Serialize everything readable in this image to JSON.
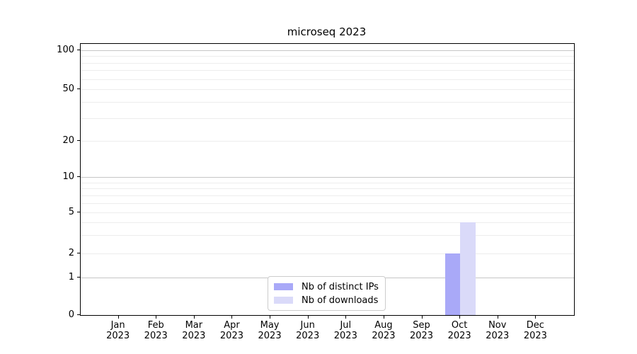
{
  "title": "microseq 2023",
  "legend": {
    "items": [
      {
        "label": "Nb of distinct IPs",
        "color": "#a9a9f8"
      },
      {
        "label": "Nb of downloads",
        "color": "#dadaf9"
      }
    ]
  },
  "axes": {
    "y_tick_labels": [
      "0",
      "1",
      "2",
      "5",
      "10",
      "20",
      "50",
      "100"
    ],
    "x_tick_year": "2023"
  },
  "chart_data": {
    "type": "bar",
    "title": "microseq 2023",
    "categories": [
      "Jan 2023",
      "Feb 2023",
      "Mar 2023",
      "Apr 2023",
      "May 2023",
      "Jun 2023",
      "Jul 2023",
      "Aug 2023",
      "Sep 2023",
      "Oct 2023",
      "Nov 2023",
      "Dec 2023"
    ],
    "series": [
      {
        "name": "Nb of distinct IPs",
        "color": "#a9a9f8",
        "values": [
          0,
          0,
          0,
          0,
          0,
          0,
          0,
          0,
          0,
          2,
          0,
          0
        ]
      },
      {
        "name": "Nb of downloads",
        "color": "#dadaf9",
        "values": [
          0,
          0,
          0,
          0,
          0,
          0,
          0,
          0,
          0,
          4,
          0,
          0
        ]
      }
    ],
    "y_axis": {
      "scale": "log-like with zero baseline",
      "ticks": [
        0,
        1,
        2,
        5,
        10,
        20,
        50,
        100
      ],
      "major_gridlines": [
        1,
        10,
        100
      ],
      "minor_gridlines": [
        2,
        3,
        4,
        5,
        6,
        7,
        8,
        9,
        20,
        30,
        40,
        50,
        60,
        70,
        80,
        90
      ],
      "ylim": [
        0,
        110
      ]
    },
    "xlabel": "",
    "ylabel": "",
    "grid": true,
    "legend_position": "lower center"
  }
}
